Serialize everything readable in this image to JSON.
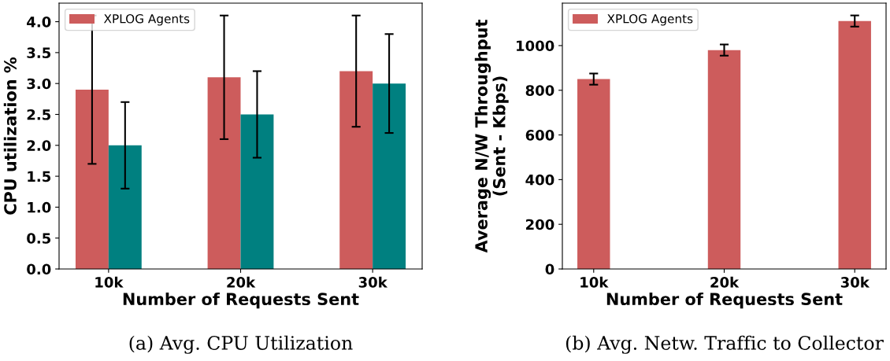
{
  "chart_data": [
    {
      "type": "bar",
      "title": "(a) Avg. CPU Utilization",
      "xlabel": "Number of Requests Sent",
      "ylabel": "CPU utilization %",
      "categories": [
        "10k",
        "20k",
        "30k"
      ],
      "series": [
        {
          "name": "XPLOG Agents",
          "color": "#cd5c5c",
          "values": [
            2.9,
            3.1,
            3.2
          ],
          "errors": [
            [
              1.7,
              4.1
            ],
            [
              2.1,
              4.1
            ],
            [
              2.3,
              4.1
            ]
          ]
        },
        {
          "color": "#008080",
          "values": [
            2.0,
            2.5,
            3.0
          ],
          "errors": [
            [
              1.3,
              2.7
            ],
            [
              1.8,
              3.2
            ],
            [
              2.2,
              3.8
            ]
          ]
        }
      ],
      "ylim": [
        0,
        4.3
      ],
      "yticks": [
        {
          "value": 0,
          "label": "0.0"
        },
        0.5,
        {
          "value": 1,
          "label": "1.0"
        },
        1.5,
        {
          "value": 2,
          "label": "2.0"
        },
        2.5,
        {
          "value": 3,
          "label": "3.0"
        },
        3.5,
        {
          "value": 4,
          "label": "4.0"
        }
      ],
      "grid": false,
      "legend": "top left"
    },
    {
      "type": "bar",
      "title": "(b) Avg. Netw. Traffic to Collector",
      "xlabel": "Number of Requests Sent",
      "ylabel": "Average N/W Throughput\n(Sent - Kbps)",
      "categories": [
        "10k",
        "20k",
        "30k"
      ],
      "series": [
        {
          "name": "XPLOG Agents",
          "color": "#cd5c5c",
          "values": [
            850,
            980,
            1110
          ],
          "errors": [
            [
              825,
              875
            ],
            [
              955,
              1005
            ],
            [
              1085,
              1135
            ]
          ]
        }
      ],
      "ylim": [
        0,
        1190
      ],
      "yticks": [
        0,
        200,
        400,
        600,
        800,
        1000
      ],
      "grid": false,
      "legend": "top left"
    }
  ]
}
